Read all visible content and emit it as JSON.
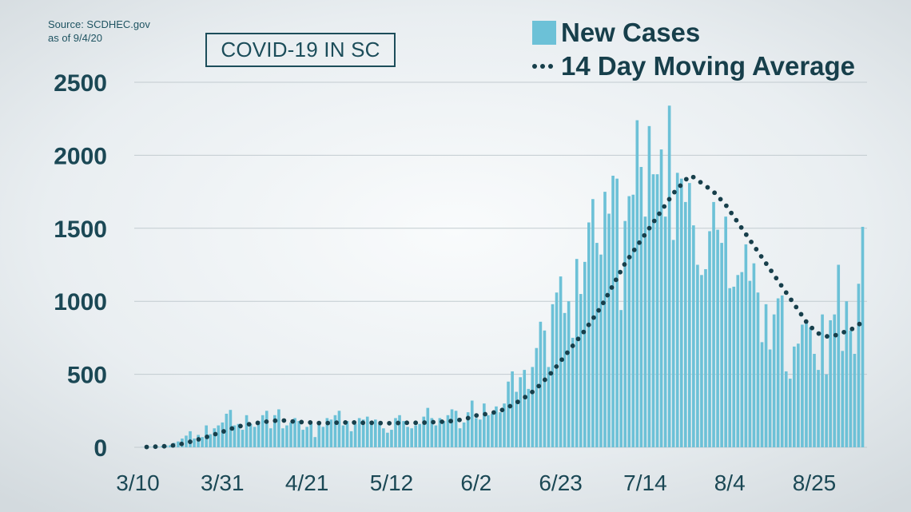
{
  "source": {
    "line1": "Source: SCDHEC.gov",
    "line2": "as of 9/4/20"
  },
  "title": "COVID-19 IN SC",
  "legend": {
    "bars": "New Cases",
    "line": "14 Day Moving Average"
  },
  "colors": {
    "bar": "#6cc1d7",
    "line": "#173f4b",
    "axis_text": "#1b4855",
    "grid": "#c2cbd0"
  },
  "chart_data": {
    "type": "bar",
    "title": "COVID-19 IN SC",
    "ylim": [
      0,
      2500
    ],
    "yticks": [
      0,
      500,
      1000,
      1500,
      2000,
      2500
    ],
    "xtick_labels": [
      "3/10",
      "3/31",
      "4/21",
      "5/12",
      "6/2",
      "6/23",
      "7/14",
      "8/4",
      "8/25"
    ],
    "x_start": "3/10",
    "x_end": "9/3",
    "grid": true,
    "legend_position": "top-right",
    "series": [
      {
        "name": "New Cases",
        "type": "bar",
        "values": [
          0,
          1,
          2,
          3,
          5,
          4,
          8,
          13,
          14,
          30,
          40,
          60,
          80,
          110,
          60,
          85,
          70,
          150,
          90,
          130,
          150,
          170,
          230,
          256,
          150,
          160,
          120,
          220,
          160,
          140,
          180,
          220,
          250,
          130,
          220,
          260,
          130,
          150,
          170,
          200,
          180,
          120,
          140,
          170,
          70,
          160,
          140,
          200,
          190,
          220,
          250,
          150,
          180,
          110,
          160,
          200,
          190,
          210,
          180,
          190,
          160,
          130,
          100,
          120,
          200,
          220,
          180,
          140,
          130,
          150,
          160,
          210,
          270,
          200,
          150,
          200,
          180,
          220,
          260,
          250,
          130,
          170,
          240,
          320,
          200,
          190,
          300,
          220,
          230,
          280,
          240,
          300,
          450,
          520,
          380,
          480,
          530,
          400,
          550,
          680,
          860,
          800,
          550,
          980,
          1060,
          1170,
          920,
          1000,
          750,
          1290,
          1050,
          1270,
          1540,
          1700,
          1400,
          1320,
          1750,
          1600,
          1860,
          1840,
          940,
          1550,
          1720,
          1730,
          2240,
          1920,
          1580,
          2200,
          1870,
          1870,
          2040,
          1580,
          2340,
          1420,
          1880,
          1840,
          1680,
          1810,
          1520,
          1250,
          1180,
          1220,
          1480,
          1680,
          1490,
          1400,
          1580,
          1090,
          1100,
          1180,
          1200,
          1390,
          1140,
          1260,
          1060,
          720,
          980,
          670,
          910,
          1020,
          1040,
          520,
          470,
          690,
          710,
          840,
          870,
          820,
          640,
          530,
          910,
          500,
          870,
          910,
          1250,
          660,
          1000,
          800,
          640,
          1120,
          1510
        ]
      },
      {
        "name": "14 Day Moving Average",
        "type": "line",
        "style": "dotted",
        "values": [
          0,
          1,
          2,
          3,
          4,
          5,
          6,
          8,
          10,
          14,
          18,
          24,
          30,
          38,
          46,
          54,
          62,
          70,
          79,
          88,
          97,
          106,
          116,
          126,
          134,
          142,
          149,
          155,
          160,
          164,
          168,
          172,
          176,
          180,
          182,
          184,
          184,
          182,
          178,
          176,
          174,
          172,
          170,
          170,
          168,
          166,
          166,
          166,
          167,
          168,
          170,
          170,
          170,
          170,
          170,
          169,
          168,
          168,
          168,
          167,
          166,
          166,
          165,
          165,
          166,
          167,
          168,
          168,
          168,
          168,
          168,
          169,
          170,
          172,
          173,
          174,
          176,
          178,
          180,
          184,
          188,
          194,
          200,
          210,
          218,
          222,
          226,
          230,
          236,
          243,
          250,
          262,
          275,
          290,
          305,
          322,
          340,
          360,
          380,
          405,
          430,
          460,
          490,
          520,
          555,
          590,
          625,
          660,
          695,
          730,
          765,
          800,
          840,
          880,
          920,
          960,
          1010,
          1060,
          1110,
          1160,
          1210,
          1260,
          1300,
          1340,
          1380,
          1420,
          1460,
          1500,
          1540,
          1580,
          1620,
          1660,
          1700,
          1740,
          1770,
          1800,
          1830,
          1860,
          1850,
          1830,
          1810,
          1790,
          1770,
          1750,
          1720,
          1690,
          1660,
          1620,
          1580,
          1540,
          1500,
          1460,
          1420,
          1380,
          1340,
          1300,
          1260,
          1220,
          1180,
          1140,
          1100,
          1060,
          1020,
          980,
          940,
          900,
          860,
          830,
          800,
          780,
          770,
          760,
          760,
          765,
          775,
          785,
          795,
          805,
          820,
          840,
          860
        ]
      }
    ]
  }
}
